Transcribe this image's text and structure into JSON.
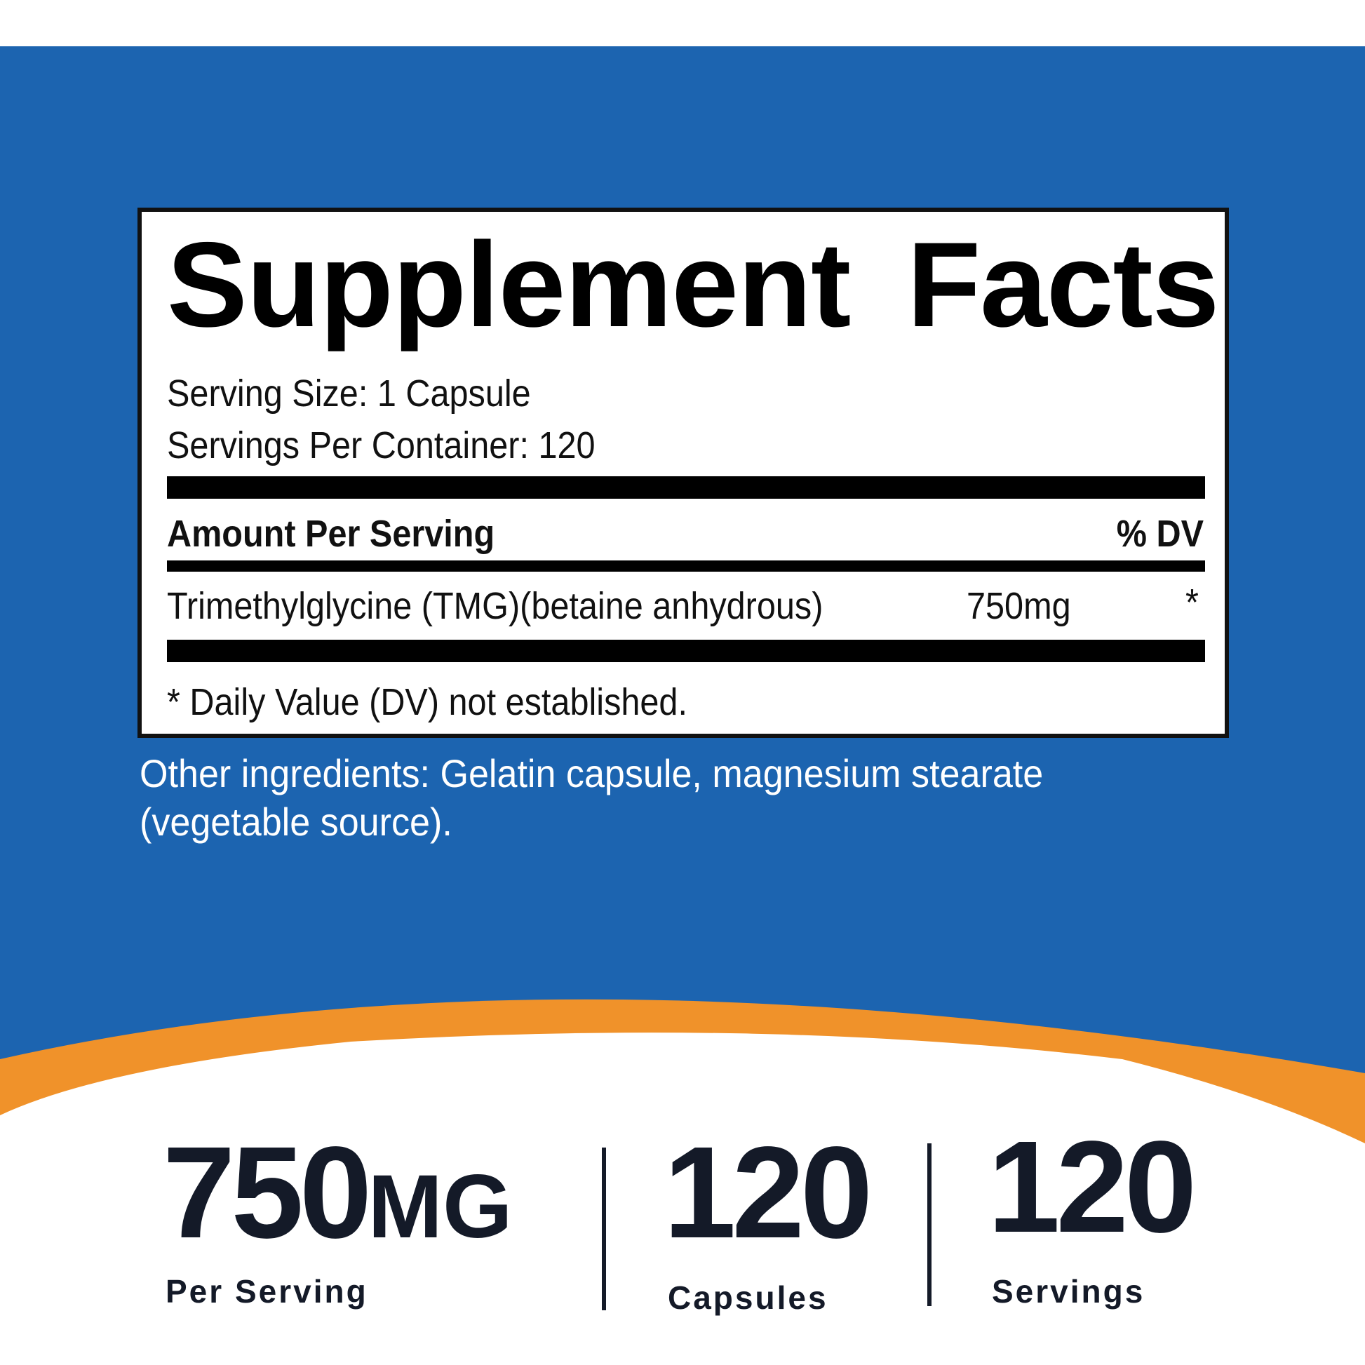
{
  "colors": {
    "blue": "#1c64b0",
    "orange": "#f0922a",
    "ink": "#141a28"
  },
  "facts": {
    "title": "Supplement Facts",
    "serving_size": "Serving Size: 1 Capsule",
    "servings_per_container": "Servings Per Container: 120",
    "amount_header": "Amount Per Serving",
    "dv_header": "% DV",
    "ingredients": [
      {
        "name": "Trimethylglycine (TMG)(betaine anhydrous)",
        "amount": "750mg",
        "dv": "*"
      }
    ],
    "footnote": "* Daily Value (DV) not established."
  },
  "other_ingredients": {
    "line1": "Other ingredients: Gelatin capsule, magnesium stearate",
    "line2": "(vegetable source)."
  },
  "stats": [
    {
      "value": "750",
      "unit": "MG",
      "label": "Per Serving"
    },
    {
      "value": "120",
      "unit": "",
      "label": "Capsules"
    },
    {
      "value": "120",
      "unit": "",
      "label": "Servings"
    }
  ]
}
